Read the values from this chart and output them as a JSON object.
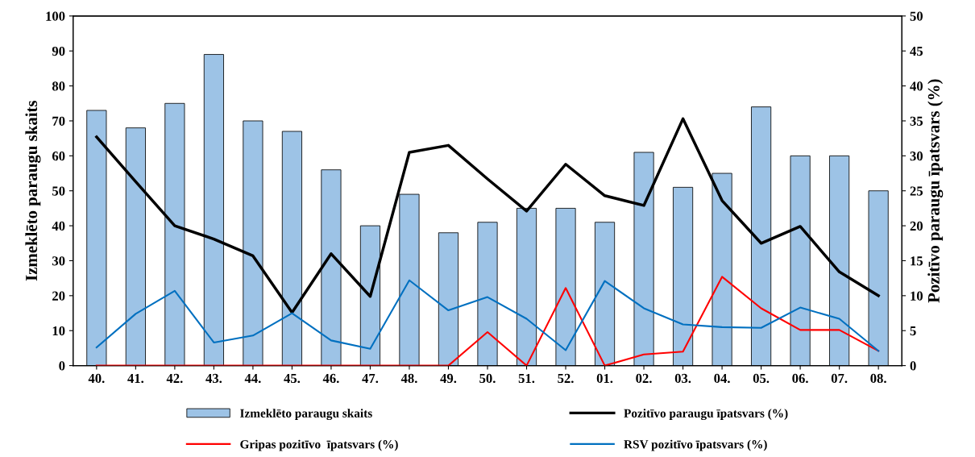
{
  "chart_data": {
    "type": "bar",
    "categories": [
      "40.",
      "41.",
      "42.",
      "43.",
      "44.",
      "45.",
      "46.",
      "47.",
      "48.",
      "49.",
      "50.",
      "51.",
      "52.",
      "01.",
      "02.",
      "03.",
      "04.",
      "05.",
      "06.",
      "07.",
      "08."
    ],
    "ylabel": "Izmeklēto paraugu skaits",
    "y2label": "Pozitīvo paraugu īpatsvars (%)",
    "ylim": [
      0,
      100
    ],
    "yticks": [
      0,
      10,
      20,
      30,
      40,
      50,
      60,
      70,
      80,
      90,
      100
    ],
    "y2lim": [
      0,
      50
    ],
    "y2ticks": [
      0,
      5,
      10,
      15,
      20,
      25,
      30,
      35,
      40,
      45,
      50
    ],
    "grid": false,
    "legend": "bottom",
    "series": [
      {
        "name": "Izmeklēto paraugu skaits",
        "color": "#9dc3e6",
        "values": [
          73,
          68,
          75,
          89,
          70,
          67,
          56,
          40,
          49,
          38,
          41,
          45,
          45,
          41,
          61,
          51,
          55,
          74,
          60,
          60,
          50
        ]
      },
      {
        "name": "Pozitīvo paraugu īpatsvars (%)",
        "type": "line",
        "axis": "y2",
        "color": "#000000",
        "values": [
          32.7,
          26.3,
          20,
          18.1,
          15.7,
          7.6,
          16,
          9.9,
          30.5,
          31.5,
          26.7,
          22.1,
          28.8,
          24.3,
          22.9,
          35.3,
          23.6,
          17.5,
          19.9,
          13.4,
          10
        ]
      },
      {
        "name": "Gripas pozitīvo  īpatsvars (%)",
        "type": "line",
        "axis": "y2",
        "color": "#ff0000",
        "values": [
          0,
          0,
          0,
          0,
          0,
          0,
          0,
          0,
          0,
          0,
          4.8,
          0,
          11.1,
          0,
          1.6,
          2,
          12.7,
          8.2,
          5.1,
          5.1,
          2.1
        ]
      },
      {
        "name": "RSV pozitīvo īpatsvars (%)",
        "type": "line",
        "axis": "y2",
        "color": "#0070c0",
        "values": [
          2.6,
          7.4,
          10.7,
          3.3,
          4.3,
          7.5,
          3.6,
          2.4,
          12.2,
          7.9,
          9.8,
          6.7,
          2.2,
          12.1,
          8.2,
          5.9,
          5.5,
          5.4,
          8.3,
          6.7,
          2.1
        ]
      }
    ]
  }
}
